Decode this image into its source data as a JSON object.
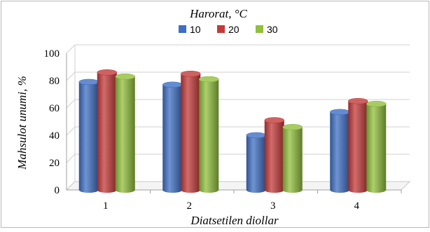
{
  "chart_data": {
    "type": "bar",
    "title": "Harorat, °C",
    "xlabel": "Diatsetilen diollar",
    "ylabel": "Mahsulot unumi, %",
    "categories": [
      "1",
      "2",
      "3",
      "4"
    ],
    "series": [
      {
        "name": "10",
        "values": [
          79,
          77,
          40,
          57
        ],
        "color": "#3f6fc4"
      },
      {
        "name": "20",
        "values": [
          86,
          85,
          51,
          65
        ],
        "color": "#c43a3a"
      },
      {
        "name": "30",
        "values": [
          83,
          81,
          46,
          63
        ],
        "color": "#92bf3c"
      }
    ],
    "yticks": [
      "0",
      "20",
      "40",
      "60",
      "80",
      "100"
    ],
    "ylim": [
      0,
      100
    ],
    "grid": true,
    "legend": "top-center"
  }
}
